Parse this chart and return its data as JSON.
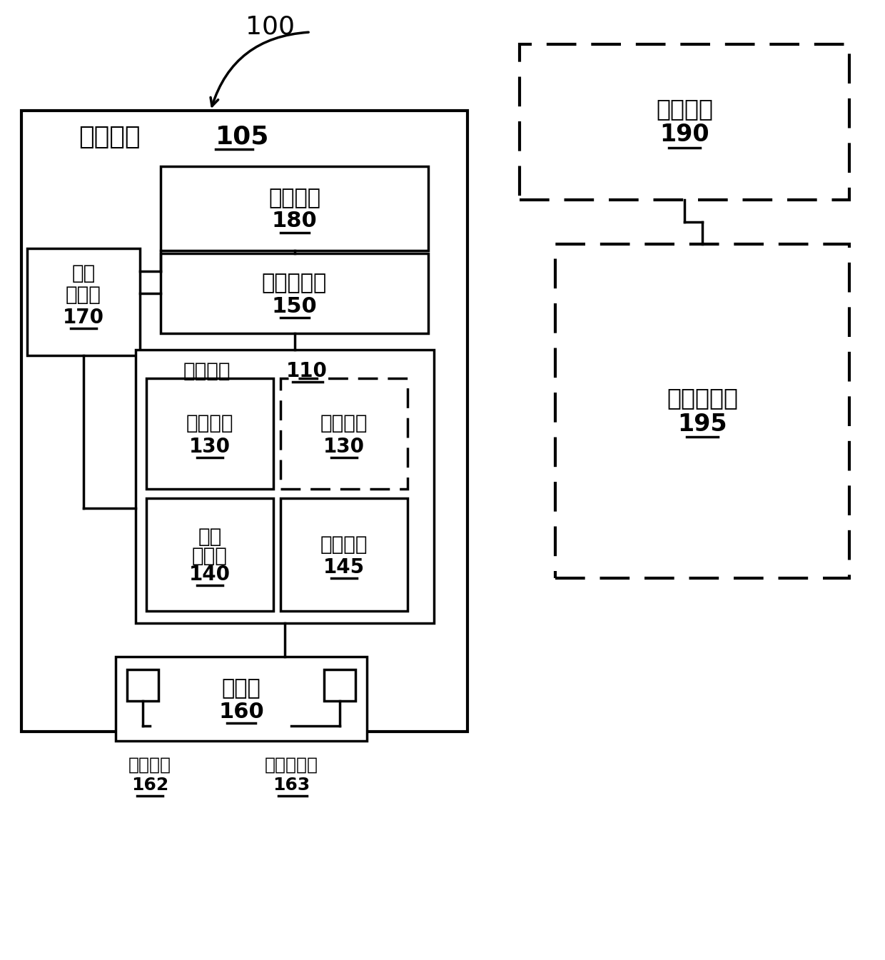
{
  "bg_color": "#ffffff",
  "text_color": "#000000",
  "label_100": "100",
  "label_105_a": "定位装置",
  "label_105_b": "105",
  "label_180_line1": "显示装置",
  "label_180_line2": "180",
  "label_170_line1": "系统",
  "label_170_line2": "控制器",
  "label_170_line3": "170",
  "label_150_line1": "引导操纵器",
  "label_150_line2": "150",
  "label_110_a": "对接装置",
  "label_110_b": "110",
  "label_130a_line1": "光学装置",
  "label_130a_line2": "130",
  "label_130b_line1": "光学装置",
  "label_130b_line2": "130",
  "label_140_line1": "倾斜",
  "label_140_line2": "传感器",
  "label_140_line3": "140",
  "label_145_line1": "参考装置",
  "label_145_line2": "145",
  "label_160_line1": "定位垫",
  "label_160_line2": "160",
  "label_162_line1": "位置图案",
  "label_162_line2": "162",
  "label_163_line1": "地点指示器",
  "label_163_line2": "163",
  "label_190_line1": "成像装置",
  "label_190_line2": "190",
  "label_195_line1": "可移动支架",
  "label_195_line2": "195"
}
